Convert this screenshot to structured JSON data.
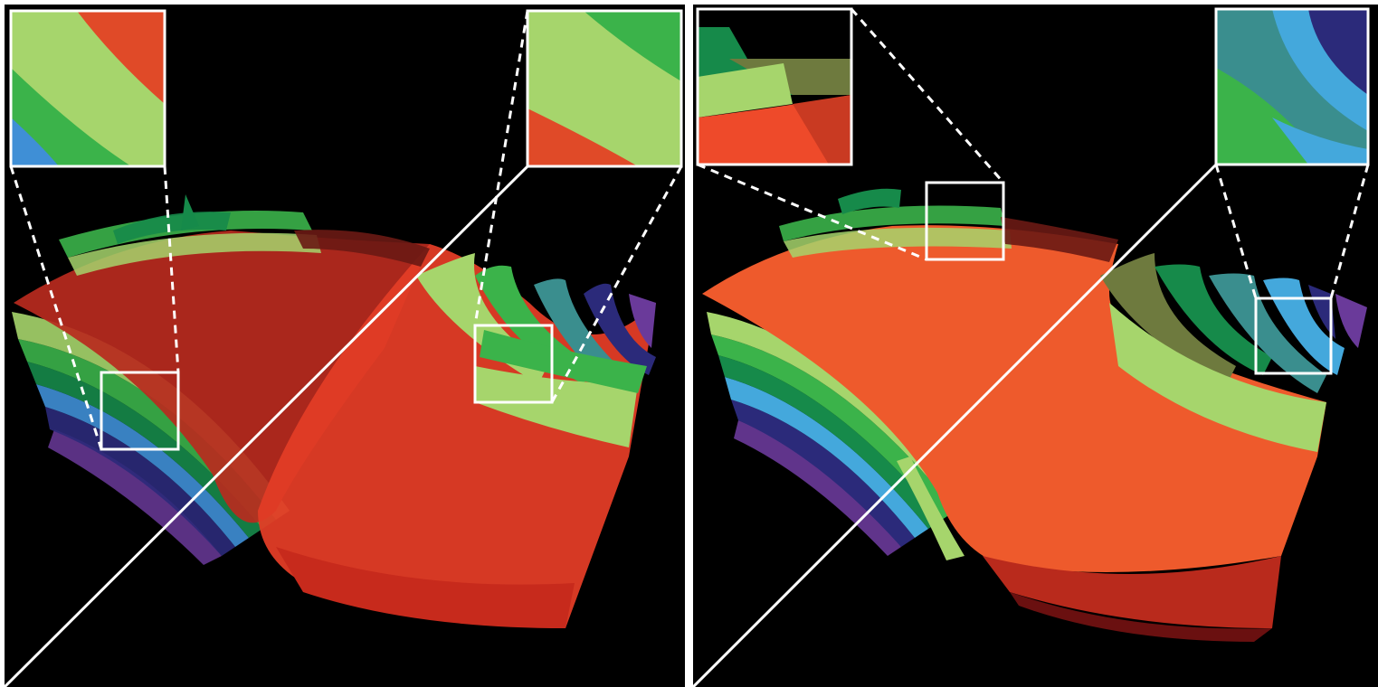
{
  "figure": {
    "background": "#000000",
    "frame_color": "#ffffff",
    "panels": [
      {
        "name": "left-render",
        "zoom_boxes": 2,
        "insets": 2
      },
      {
        "name": "right-render",
        "zoom_boxes": 2,
        "insets": 2
      }
    ],
    "palette": {
      "red": "#e8432a",
      "dark_red": "#8a1410",
      "orange": "#ee5a2c",
      "light_green": "#a6d56c",
      "green": "#3bb34a",
      "dark_green": "#168a4a",
      "olive": "#6e7a3e",
      "teal": "#3a8e8e",
      "blue": "#3f8fd6",
      "light_blue": "#44a8dc",
      "navy": "#2b2a7a",
      "purple": "#6a3a9a"
    }
  }
}
